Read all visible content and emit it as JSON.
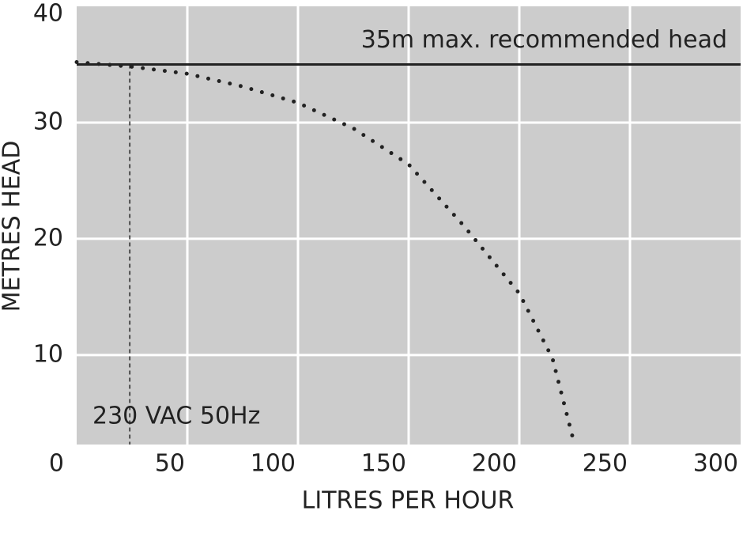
{
  "chart_data": {
    "type": "line",
    "x_label": "LITRES PER HOUR",
    "y_label": "METRES HEAD",
    "x": [
      0,
      25,
      50,
      75,
      100,
      125,
      150,
      175,
      200,
      215,
      224
    ],
    "series": [
      {
        "name": null,
        "color": "#222222",
        "values": [
          35.2,
          34.8,
          34.2,
          33.1,
          31.7,
          29.5,
          26.4,
          21.1,
          15.3,
          9.7,
          3
        ]
      }
    ],
    "xlim": [
      0,
      300
    ],
    "xticks": [
      0,
      50,
      100,
      150,
      200,
      250,
      300
    ],
    "ylim": [
      2.3,
      40
    ],
    "yticks": [
      10,
      20,
      30,
      40
    ],
    "grid": true,
    "plot_background": "#cccccc",
    "reference_line": {
      "value": 35,
      "label": "35m max. recommended head"
    },
    "marker": {
      "x": 24,
      "label": "230 VAC 50Hz"
    }
  }
}
